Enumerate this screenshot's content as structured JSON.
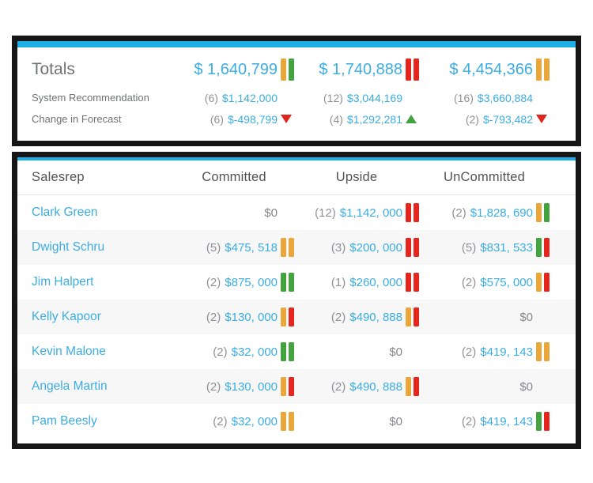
{
  "colors": {
    "accent": "#1FADE6",
    "link_blue": "#3BADE2",
    "label_gray": "#6F7276",
    "count_gray": "#8F9194",
    "stripe_gray": "#F7F7F7",
    "bar_yellow": "#E9A63B",
    "bar_green": "#43A33F",
    "bar_red": "#E5261F",
    "trend_green": "#3FA142",
    "trend_red": "#E0261C"
  },
  "totals_panel": {
    "title": "Totals",
    "columns": [
      {
        "value": "$ 1,640,799",
        "bars": [
          "yellow",
          "green"
        ]
      },
      {
        "value": "$ 1,740,888",
        "bars": [
          "red",
          "red"
        ]
      },
      {
        "value": "$ 4,454,366",
        "bars": [
          "yellow",
          "yellow"
        ]
      }
    ],
    "rows": [
      {
        "label": "System Recommendation",
        "cells": [
          {
            "count": "(6)",
            "amount": "$1,142,000",
            "trend": "none"
          },
          {
            "count": "(12)",
            "amount": "$3,044,169",
            "trend": "none"
          },
          {
            "count": "(16)",
            "amount": "$3,660,884",
            "trend": "none"
          }
        ]
      },
      {
        "label": "Change in Forecast",
        "cells": [
          {
            "count": "(6)",
            "amount": "$-498,799",
            "trend": "down"
          },
          {
            "count": "(4)",
            "amount": "$1,292,281",
            "trend": "up"
          },
          {
            "count": "(2)",
            "amount": "$-793,482",
            "trend": "down"
          }
        ]
      }
    ]
  },
  "table": {
    "headers": [
      "Salesrep",
      "Committed",
      "Upside",
      "UnCommitted"
    ],
    "rows": [
      {
        "name": "Clark Green",
        "cells": [
          {
            "count": "",
            "amount": "$0",
            "zero": true,
            "bars": []
          },
          {
            "count": "(12)",
            "amount": "$1,142, 000",
            "zero": false,
            "bars": [
              "red",
              "red"
            ]
          },
          {
            "count": "(2)",
            "amount": "$1,828, 690",
            "zero": false,
            "bars": [
              "yellow",
              "green"
            ]
          }
        ]
      },
      {
        "name": "Dwight Schru",
        "cells": [
          {
            "count": "(5)",
            "amount": "$475, 518",
            "zero": false,
            "bars": [
              "yellow",
              "yellow"
            ]
          },
          {
            "count": "(3)",
            "amount": "$200, 000",
            "zero": false,
            "bars": [
              "red",
              "red"
            ]
          },
          {
            "count": "(5)",
            "amount": "$831, 533",
            "zero": false,
            "bars": [
              "green",
              "red"
            ]
          }
        ]
      },
      {
        "name": "Jim Halpert",
        "cells": [
          {
            "count": "(2)",
            "amount": "$875, 000",
            "zero": false,
            "bars": [
              "green",
              "green"
            ]
          },
          {
            "count": "(1)",
            "amount": "$260, 000",
            "zero": false,
            "bars": [
              "red",
              "red"
            ]
          },
          {
            "count": "(2)",
            "amount": "$575, 000",
            "zero": false,
            "bars": [
              "yellow",
              "red"
            ]
          }
        ]
      },
      {
        "name": "Kelly Kapoor",
        "cells": [
          {
            "count": "(2)",
            "amount": "$130, 000",
            "zero": false,
            "bars": [
              "yellow",
              "red"
            ]
          },
          {
            "count": "(2)",
            "amount": "$490, 888",
            "zero": false,
            "bars": [
              "yellow",
              "red"
            ]
          },
          {
            "count": "",
            "amount": "$0",
            "zero": true,
            "bars": []
          }
        ]
      },
      {
        "name": "Kevin Malone",
        "cells": [
          {
            "count": "(2)",
            "amount": "$32, 000",
            "zero": false,
            "bars": [
              "green",
              "green"
            ]
          },
          {
            "count": "",
            "amount": "$0",
            "zero": true,
            "bars": []
          },
          {
            "count": "(2)",
            "amount": "$419, 143",
            "zero": false,
            "bars": [
              "yellow",
              "yellow"
            ]
          }
        ]
      },
      {
        "name": "Angela Martin",
        "cells": [
          {
            "count": "(2)",
            "amount": "$130, 000",
            "zero": false,
            "bars": [
              "yellow",
              "red"
            ]
          },
          {
            "count": "(2)",
            "amount": "$490, 888",
            "zero": false,
            "bars": [
              "yellow",
              "red"
            ]
          },
          {
            "count": "",
            "amount": "$0",
            "zero": true,
            "bars": []
          }
        ]
      },
      {
        "name": "Pam Beesly",
        "cells": [
          {
            "count": "(2)",
            "amount": "$32, 000",
            "zero": false,
            "bars": [
              "yellow",
              "yellow"
            ]
          },
          {
            "count": "",
            "amount": "$0",
            "zero": true,
            "bars": []
          },
          {
            "count": "(2)",
            "amount": "$419, 143",
            "zero": false,
            "bars": [
              "green",
              "red"
            ]
          }
        ]
      }
    ]
  }
}
